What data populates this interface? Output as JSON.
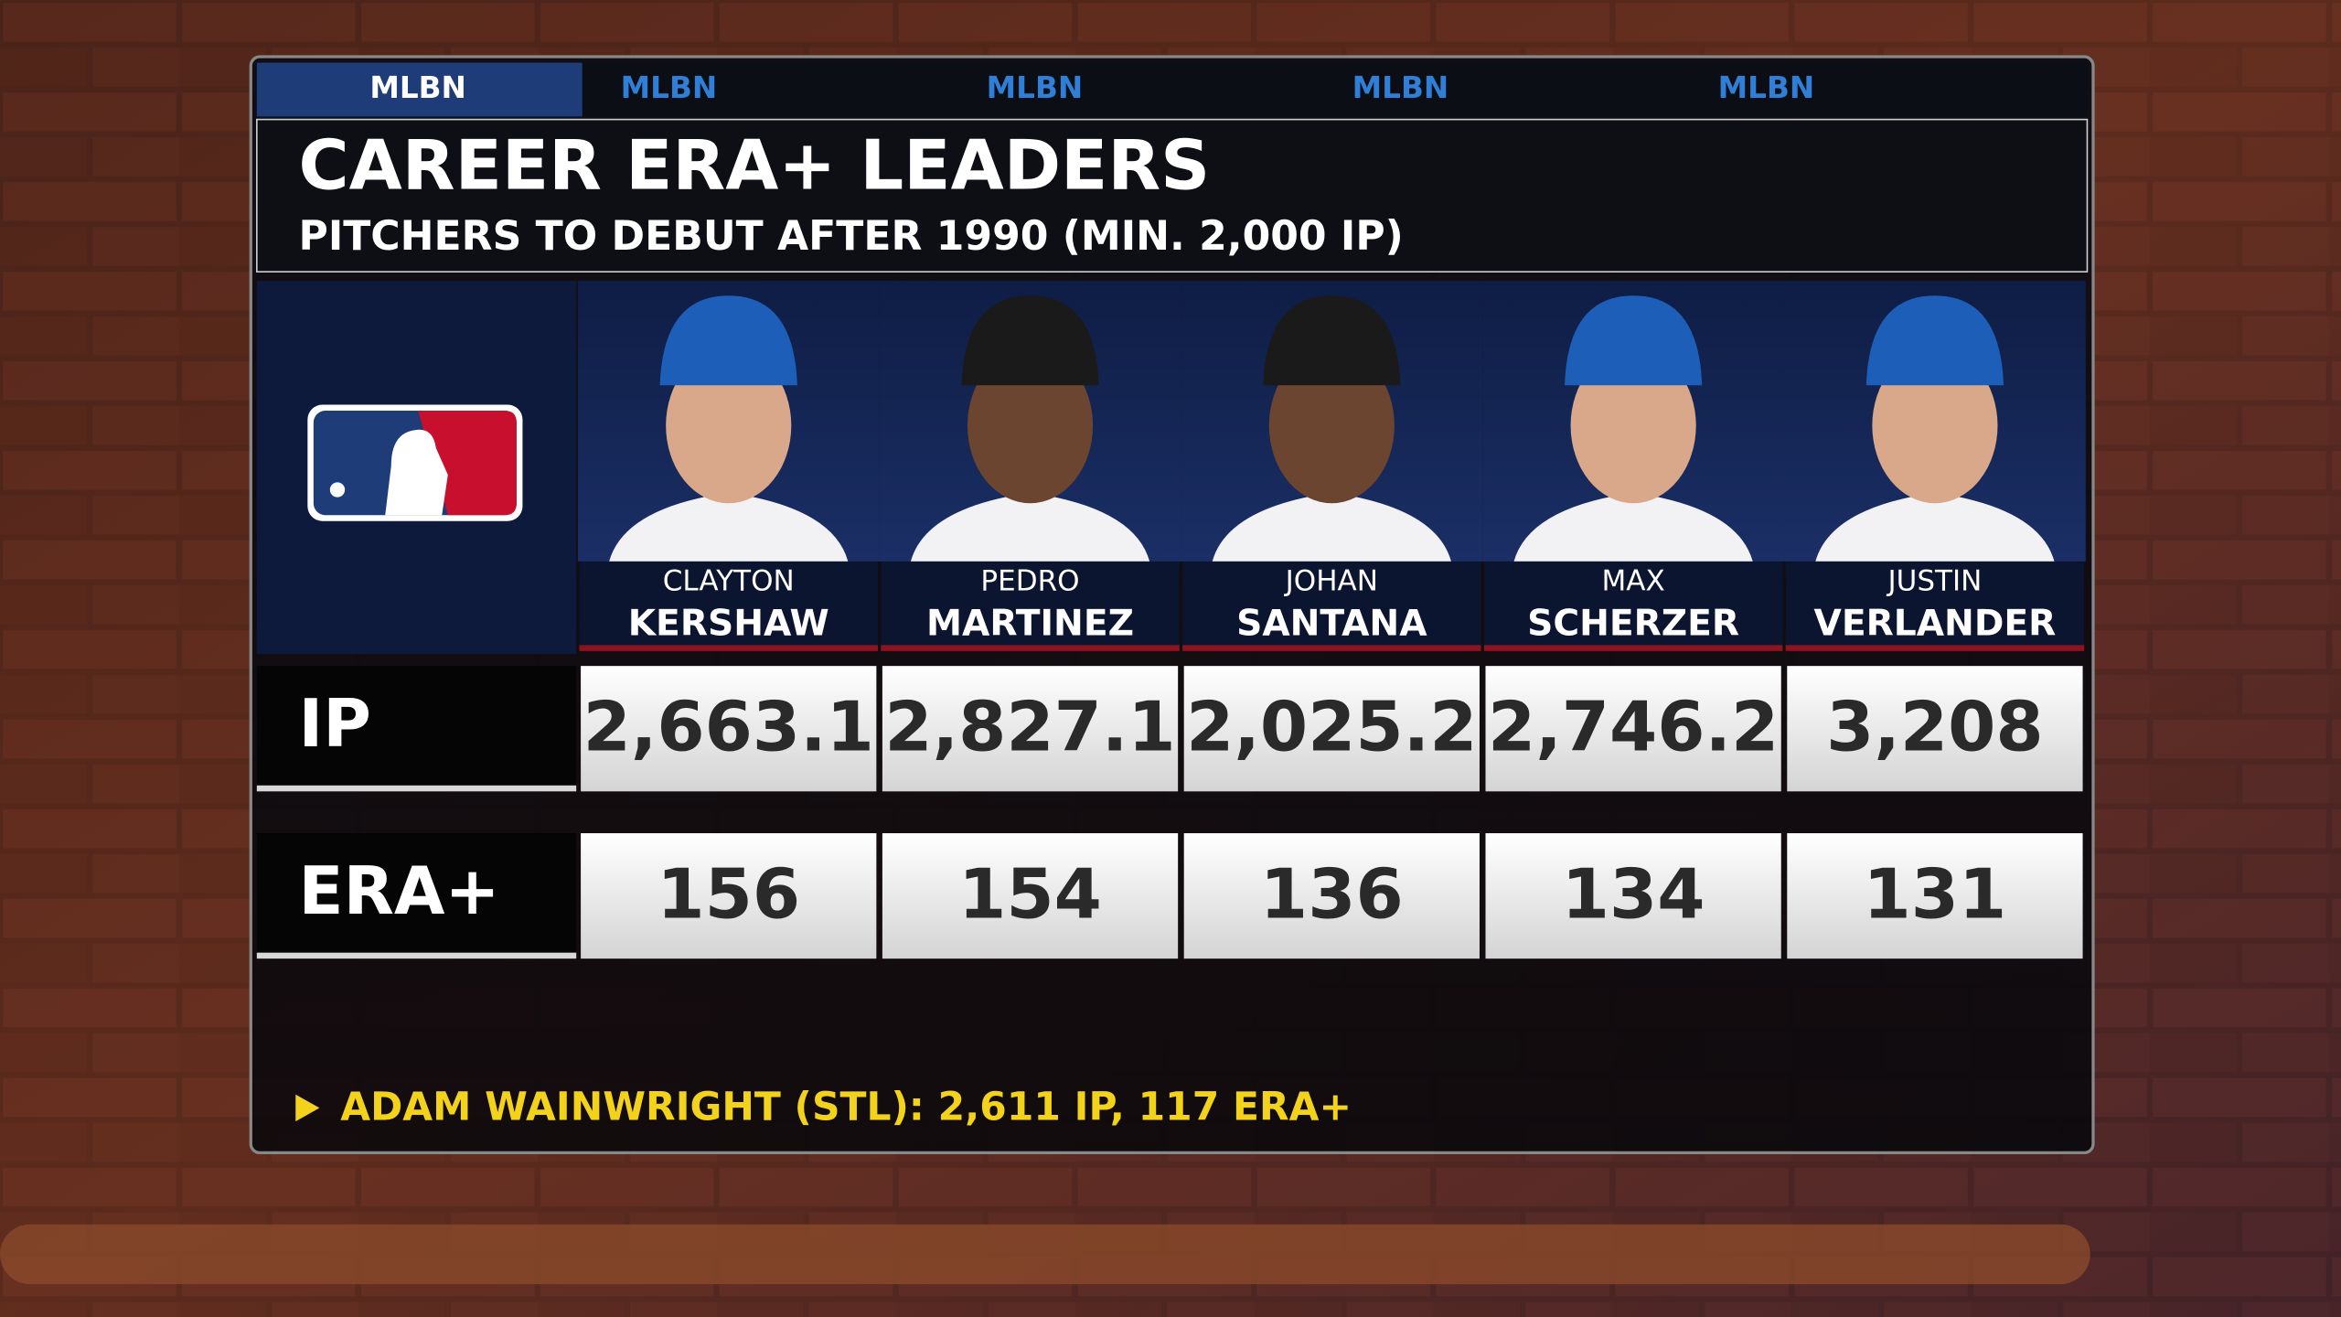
{
  "tabs": [
    "MLBN",
    "MLBN",
    "MLBN",
    "MLBN",
    "MLBN"
  ],
  "header": {
    "title": "CAREER ERA+ LEADERS",
    "subtitle": "PITCHERS TO DEBUT AFTER 1990 (MIN. 2,000 IP)"
  },
  "players": [
    {
      "first": "CLAYTON",
      "last": "KERSHAW"
    },
    {
      "first": "PEDRO",
      "last": "MARTINEZ"
    },
    {
      "first": "JOHAN",
      "last": "SANTANA"
    },
    {
      "first": "MAX",
      "last": "SCHERZER"
    },
    {
      "first": "JUSTIN",
      "last": "VERLANDER"
    }
  ],
  "table": {
    "rows": [
      {
        "label": "IP",
        "values": [
          "2,663.1",
          "2,827.1",
          "2,025.2",
          "2,746.2",
          "3,208"
        ]
      },
      {
        "label": "ERA+",
        "values": [
          "156",
          "154",
          "136",
          "134",
          "131"
        ]
      }
    ]
  },
  "footnote": "ADAM WAINWRIGHT (STL): 2,611 IP, 117 ERA+"
}
